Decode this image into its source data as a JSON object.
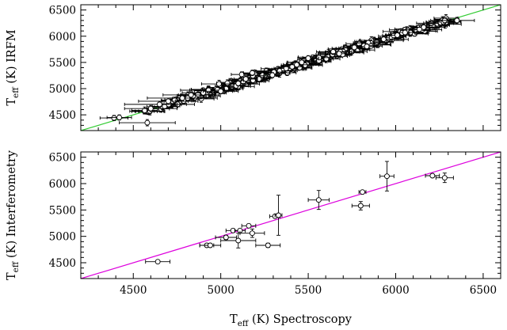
{
  "chart_data": [
    {
      "type": "scatter",
      "panel": "top",
      "title": "",
      "xlabel": "",
      "ylabel": {
        "prefix": "T",
        "sub": "eff",
        "suffix": " (K) IRFM"
      },
      "xlim": [
        4200,
        6600
      ],
      "ylim": [
        4200,
        6600
      ],
      "xticks": [
        4500,
        5000,
        5500,
        6000,
        6500
      ],
      "yticks": [
        4500,
        5000,
        5500,
        6000,
        6500
      ],
      "show_x_tick_labels": false,
      "grid": false,
      "legend": "none",
      "marker": "open-circle-with-errorbars",
      "marker_color": "#000000",
      "reference_line": {
        "type": "one-to-one",
        "slope": 1,
        "intercept": 0,
        "color": "#33cc33"
      },
      "band_description": "dense cloud of ~300 stars tightly along the one-to-one relation from ~4400 K to ~6400 K",
      "points": [
        {
          "x": 4390,
          "y": 4440,
          "xerr": 80,
          "yerr": 50
        },
        {
          "x": 4420,
          "y": 4450,
          "xerr": 70,
          "yerr": 50
        },
        {
          "x": 4580,
          "y": 4350,
          "xerr": 160,
          "yerr": 60
        },
        {
          "x": 4600,
          "y": 4620,
          "xerr": 150,
          "yerr": 60
        },
        {
          "x": 4650,
          "y": 4700,
          "xerr": 200,
          "yerr": 60
        },
        {
          "x": 4700,
          "y": 4760,
          "xerr": 170,
          "yerr": 60
        },
        {
          "x": 4780,
          "y": 4820,
          "xerr": 200,
          "yerr": 50
        },
        {
          "x": 4830,
          "y": 4880,
          "xerr": 160,
          "yerr": 60
        },
        {
          "x": 4900,
          "y": 4920,
          "xerr": 120,
          "yerr": 50
        },
        {
          "x": 4930,
          "y": 4970,
          "xerr": 160,
          "yerr": 50
        },
        {
          "x": 4990,
          "y": 5090,
          "xerr": 100,
          "yerr": 70
        },
        {
          "x": 5000,
          "y": 4950,
          "xerr": 100,
          "yerr": 50
        },
        {
          "x": 5100,
          "y": 5100,
          "xerr": 40,
          "yerr": 50
        },
        {
          "x": 5120,
          "y": 5270,
          "xerr": 60,
          "yerr": 50
        },
        {
          "x": 5180,
          "y": 5300,
          "xerr": 50,
          "yerr": 50
        },
        {
          "x": 5500,
          "y": 5580,
          "xerr": 60,
          "yerr": 50
        },
        {
          "x": 6160,
          "y": 6170,
          "xerr": 60,
          "yerr": 60
        },
        {
          "x": 6280,
          "y": 6300,
          "xerr": 80,
          "yerr": 50
        },
        {
          "x": 6350,
          "y": 6300,
          "xerr": 100,
          "yerr": 60
        }
      ]
    },
    {
      "type": "scatter",
      "panel": "bottom",
      "title": "",
      "xlabel": {
        "prefix": "T",
        "sub": "eff",
        "suffix": " (K) Spectroscopy"
      },
      "ylabel": {
        "prefix": "T",
        "sub": "eff",
        "suffix": " (K) Interferometry"
      },
      "xlim": [
        4200,
        6600
      ],
      "ylim": [
        4200,
        6600
      ],
      "xticks": [
        4500,
        5000,
        5500,
        6000,
        6500
      ],
      "yticks": [
        4500,
        5000,
        5500,
        6000,
        6500
      ],
      "show_x_tick_labels": true,
      "grid": false,
      "legend": "none",
      "marker": "open-circle-with-errorbars",
      "marker_color": "#000000",
      "reference_line": {
        "type": "one-to-one",
        "slope": 1,
        "intercept": 0,
        "color": "#dd00dd"
      },
      "points": [
        {
          "x": 4640,
          "y": 4520,
          "xerr": 70,
          "yerr": 20
        },
        {
          "x": 4920,
          "y": 4830,
          "xerr": 40,
          "yerr": 20
        },
        {
          "x": 4940,
          "y": 4830,
          "xerr": 60,
          "yerr": 20
        },
        {
          "x": 5030,
          "y": 4980,
          "xerr": 60,
          "yerr": 40
        },
        {
          "x": 5070,
          "y": 5110,
          "xerr": 40,
          "yerr": 20
        },
        {
          "x": 5100,
          "y": 4920,
          "xerr": 100,
          "yerr": 140
        },
        {
          "x": 5110,
          "y": 5110,
          "xerr": 30,
          "yerr": 20
        },
        {
          "x": 5160,
          "y": 5200,
          "xerr": 40,
          "yerr": 20
        },
        {
          "x": 5180,
          "y": 5060,
          "xerr": 70,
          "yerr": 80
        },
        {
          "x": 5270,
          "y": 4830,
          "xerr": 70,
          "yerr": 40
        },
        {
          "x": 5310,
          "y": 5380,
          "xerr": 30,
          "yerr": 30
        },
        {
          "x": 5330,
          "y": 5400,
          "xerr": 20,
          "yerr": 380
        },
        {
          "x": 5560,
          "y": 5690,
          "xerr": 60,
          "yerr": 180
        },
        {
          "x": 5800,
          "y": 5580,
          "xerr": 50,
          "yerr": 80
        },
        {
          "x": 5810,
          "y": 5840,
          "xerr": 20,
          "yerr": 30
        },
        {
          "x": 5950,
          "y": 6140,
          "xerr": 40,
          "yerr": 280
        },
        {
          "x": 6210,
          "y": 6150,
          "xerr": 40,
          "yerr": 20
        },
        {
          "x": 6280,
          "y": 6110,
          "xerr": 50,
          "yerr": 90
        }
      ]
    }
  ]
}
